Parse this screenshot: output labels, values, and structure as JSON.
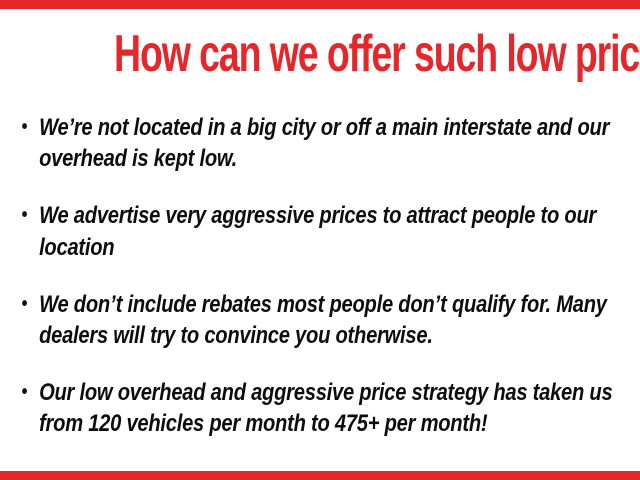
{
  "page": {
    "background_color": "#ffffff",
    "accent_color": "#e5262a",
    "text_color": "#0d0d0d",
    "bullet_char": "•"
  },
  "header": {
    "title": "How can we offer such low prices?"
  },
  "bullets": [
    {
      "text": "We’re not located in a big city or off a main interstate and our overhead is kept low."
    },
    {
      "text": "We advertise very aggressive prices to attract people to our location"
    },
    {
      "text": "We don’t include rebates most people don’t qualify for. Many dealers will try to convince you otherwise."
    },
    {
      "text": "Our low overhead and aggressive price strategy has taken us from 120 vehicles per month to 475+ per month!"
    }
  ]
}
